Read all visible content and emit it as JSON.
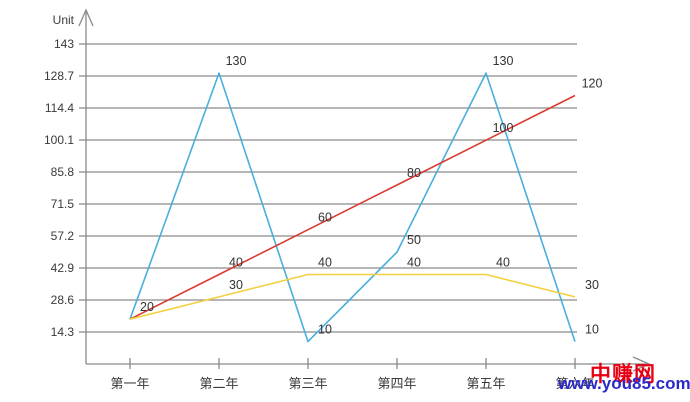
{
  "chart_data": {
    "type": "line",
    "title": "",
    "ylabel": "Unit",
    "xlabel": "",
    "categories": [
      "第一年",
      "第二年",
      "第三年",
      "第四年",
      "第五年",
      "第六年"
    ],
    "y_ticks": [
      143,
      128.7,
      114.4,
      100.1,
      85.8,
      71.5,
      57.2,
      42.9,
      28.6,
      14.3
    ],
    "ylim": [
      14.3,
      143
    ],
    "grid": true,
    "legend": false,
    "series": [
      {
        "name": "blue-series",
        "color": "#49afdd",
        "values": [
          20,
          130,
          10,
          50,
          130,
          10
        ],
        "labels": [
          "",
          "130",
          "10",
          "50",
          "130",
          "10"
        ]
      },
      {
        "name": "red-series",
        "color": "#d93a30",
        "values": [
          20,
          40,
          60,
          80,
          100,
          120
        ],
        "labels": [
          "20",
          "40",
          "60",
          "80",
          "100",
          "120"
        ]
      },
      {
        "name": "yellow-series",
        "color": "#f3d03e",
        "values": [
          20,
          30,
          40,
          40,
          40,
          30
        ],
        "labels": [
          "",
          "30",
          "40",
          "40",
          "40",
          "30"
        ]
      }
    ]
  },
  "style": {
    "axis_color": "#8a8a8a",
    "grid_color": "#8a8a8a",
    "tick_text_color": "#3a3a3a",
    "label_text_color": "#333333"
  },
  "watermark": {
    "site_name": "中赚网",
    "site_url": "www.you85.com",
    "name_color": "#e60012",
    "url_color": "#2a2acc"
  }
}
